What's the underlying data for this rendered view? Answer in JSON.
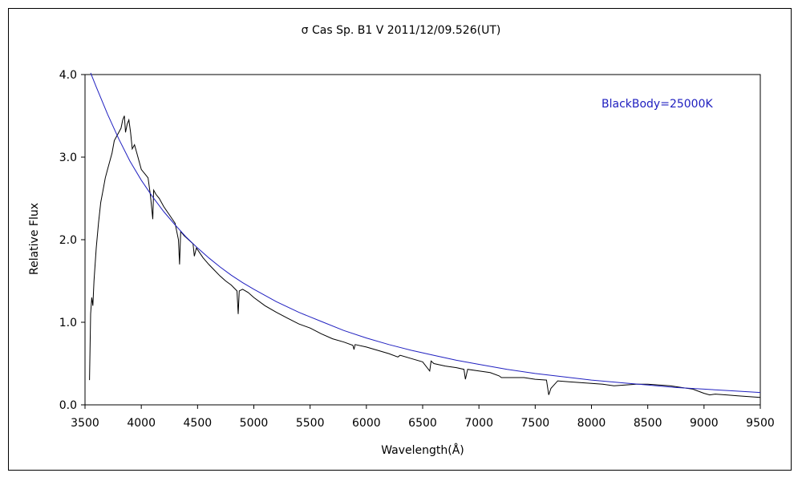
{
  "chart_data": {
    "type": "line",
    "title": "σ Cas    Sp. B1 V    2011/12/09.526(UT)",
    "xlabel": "Wavelength(Å)",
    "ylabel": "Relative Flux",
    "xlim": [
      3500,
      9500
    ],
    "ylim": [
      0.0,
      4.0
    ],
    "x_ticks": [
      "3500",
      "4000",
      "4500",
      "5000",
      "5500",
      "6000",
      "6500",
      "7000",
      "7500",
      "8000",
      "8500",
      "9000",
      "9500"
    ],
    "y_ticks": [
      "0.0",
      "1.0",
      "2.0",
      "3.0",
      "4.0"
    ],
    "grid": false,
    "annotation": "BlackBody=25000K",
    "colors": {
      "spectrum": "#000000",
      "blackbody": "#2020c0"
    },
    "series": [
      {
        "x": [
          3540,
          3550,
          3560,
          3570,
          3580,
          3600,
          3620,
          3640,
          3660,
          3680,
          3700,
          3720,
          3740,
          3760,
          3780,
          3800,
          3820,
          3835,
          3850,
          3860,
          3875,
          3890,
          3905,
          3920,
          3940,
          3960,
          3980,
          4000,
          4030,
          4060,
          4080,
          4095,
          4102,
          4110,
          4130,
          4160,
          4200,
          4250,
          4300,
          4330,
          4340,
          4350,
          4380,
          4420,
          4460,
          4471,
          4490,
          4550,
          4600,
          4650,
          4700,
          4750,
          4800,
          4850,
          4861,
          4870,
          4900,
          4950,
          5000,
          5100,
          5200,
          5300,
          5400,
          5500,
          5600,
          5700,
          5800,
          5880,
          5890,
          5900,
          6000,
          6100,
          6200,
          6280,
          6300,
          6400,
          6500,
          6563,
          6575,
          6600,
          6700,
          6800,
          6867,
          6880,
          6900,
          7000,
          7100,
          7180,
          7200,
          7300,
          7400,
          7500,
          7600,
          7620,
          7640,
          7700,
          7800,
          7900,
          8000,
          8100,
          8200,
          8300,
          8400,
          8500,
          8600,
          8700,
          8800,
          8900,
          9000,
          9050,
          9100,
          9200,
          9300,
          9400,
          9500
        ],
        "values": [
          0.3,
          1.1,
          1.3,
          1.2,
          1.5,
          1.9,
          2.2,
          2.45,
          2.6,
          2.75,
          2.85,
          2.95,
          3.05,
          3.2,
          3.25,
          3.3,
          3.35,
          3.45,
          3.5,
          3.3,
          3.4,
          3.45,
          3.3,
          3.1,
          3.15,
          3.05,
          2.95,
          2.85,
          2.8,
          2.75,
          2.55,
          2.35,
          2.25,
          2.6,
          2.55,
          2.5,
          2.4,
          2.3,
          2.2,
          2.0,
          1.7,
          2.1,
          2.05,
          2.0,
          1.95,
          1.8,
          1.9,
          1.78,
          1.7,
          1.63,
          1.56,
          1.5,
          1.45,
          1.38,
          1.1,
          1.38,
          1.4,
          1.36,
          1.3,
          1.2,
          1.12,
          1.05,
          0.98,
          0.93,
          0.86,
          0.8,
          0.76,
          0.72,
          0.67,
          0.73,
          0.7,
          0.66,
          0.62,
          0.58,
          0.6,
          0.56,
          0.52,
          0.41,
          0.53,
          0.5,
          0.47,
          0.45,
          0.43,
          0.31,
          0.43,
          0.41,
          0.39,
          0.35,
          0.33,
          0.33,
          0.33,
          0.31,
          0.3,
          0.12,
          0.2,
          0.29,
          0.28,
          0.27,
          0.26,
          0.25,
          0.23,
          0.24,
          0.25,
          0.25,
          0.24,
          0.23,
          0.21,
          0.19,
          0.14,
          0.12,
          0.13,
          0.12,
          0.11,
          0.1,
          0.09
        ]
      },
      {
        "x": [
          3550,
          3600,
          3700,
          3800,
          3900,
          4000,
          4100,
          4200,
          4300,
          4400,
          4500,
          4600,
          4700,
          4800,
          4900,
          5000,
          5200,
          5400,
          5600,
          5800,
          6000,
          6200,
          6400,
          6600,
          6800,
          7000,
          7250,
          7500,
          7750,
          8000,
          8250,
          8500,
          8750,
          9000,
          9250,
          9500
        ],
        "values": [
          4.02,
          3.85,
          3.52,
          3.22,
          2.95,
          2.72,
          2.52,
          2.34,
          2.18,
          2.03,
          1.9,
          1.78,
          1.67,
          1.57,
          1.48,
          1.4,
          1.25,
          1.12,
          1.01,
          0.9,
          0.81,
          0.73,
          0.66,
          0.6,
          0.54,
          0.49,
          0.43,
          0.38,
          0.34,
          0.3,
          0.27,
          0.24,
          0.21,
          0.19,
          0.17,
          0.15
        ]
      }
    ]
  }
}
